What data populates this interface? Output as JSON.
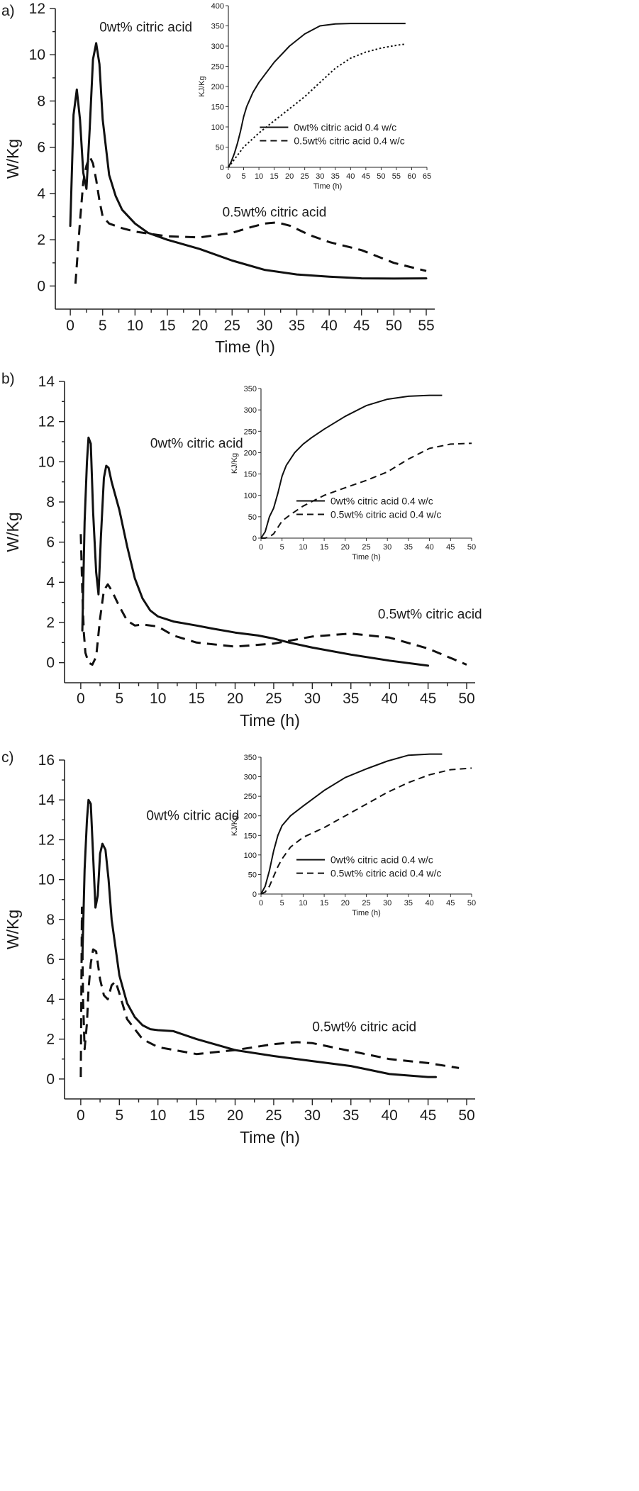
{
  "chart_data": [
    {
      "panel_label": "a)",
      "type": "line",
      "xlabel": "Time (h)",
      "ylabel": "W/Kg",
      "xlim": [
        -1,
        55
      ],
      "ylim": [
        -1,
        12
      ],
      "xticks": [
        0,
        5,
        10,
        15,
        20,
        25,
        30,
        35,
        40,
        45,
        50,
        55
      ],
      "yticks": [
        0,
        2,
        4,
        6,
        8,
        10,
        12
      ],
      "annotations": [
        {
          "text": "0wt% citric acid",
          "x": 4.5,
          "y": 11.0
        },
        {
          "text": "0.5wt% citric acid",
          "x": 23.5,
          "y": 3.0
        }
      ],
      "series": [
        {
          "style": "solid",
          "x": [
            0,
            0.5,
            1,
            1.5,
            2,
            2.5,
            3,
            3.5,
            4,
            4.5,
            5,
            6,
            7,
            8,
            10,
            12,
            15,
            20,
            25,
            30,
            35,
            40,
            45,
            50,
            55
          ],
          "y": [
            2.6,
            7.4,
            8.5,
            7.2,
            4.9,
            4.2,
            6.8,
            9.8,
            10.5,
            9.6,
            7.2,
            4.8,
            3.9,
            3.3,
            2.7,
            2.3,
            2.0,
            1.6,
            1.1,
            0.7,
            0.5,
            0.4,
            0.33,
            0.32,
            0.33
          ]
        },
        {
          "style": "dashed",
          "x": [
            0.8,
            1.5,
            2,
            2.5,
            3,
            3.5,
            4,
            4.5,
            5,
            6,
            8,
            10,
            15,
            20,
            25,
            28,
            30,
            32,
            34,
            37,
            40,
            45,
            50,
            55
          ],
          "y": [
            0.1,
            2.8,
            4.5,
            5.2,
            5.6,
            5.3,
            4.6,
            3.7,
            3.0,
            2.7,
            2.5,
            2.35,
            2.15,
            2.1,
            2.3,
            2.55,
            2.7,
            2.75,
            2.6,
            2.2,
            1.9,
            1.55,
            1.0,
            0.65
          ]
        }
      ],
      "inset": {
        "xlabel": "Time (h)",
        "ylabel": "KJ/Kg",
        "xlim": [
          0,
          65
        ],
        "ylim": [
          0,
          400
        ],
        "xticks": [
          0,
          5,
          10,
          15,
          20,
          25,
          30,
          35,
          40,
          45,
          50,
          55,
          60,
          65
        ],
        "yticks": [
          0,
          50,
          100,
          150,
          200,
          250,
          300,
          350,
          400
        ],
        "legend": [
          "0wt% citric acid 0.4 w/c",
          "0.5wt% citric acid 0.4 w/c"
        ],
        "series": [
          {
            "name": "0wt% citric acid 0.4 w/c",
            "style": "solid",
            "x": [
              0,
              1,
              2,
              3,
              4,
              5,
              6,
              8,
              10,
              15,
              20,
              25,
              30,
              35,
              40,
              45,
              50,
              55,
              58
            ],
            "y": [
              0,
              15,
              35,
              60,
              90,
              125,
              150,
              185,
              210,
              260,
              300,
              330,
              350,
              355,
              356,
              356,
              356,
              356,
              356
            ]
          },
          {
            "name": "0.5wt% citric acid 0.4 w/c",
            "style": "dotted",
            "x": [
              0,
              1,
              2,
              3,
              5,
              10,
              15,
              20,
              25,
              30,
              35,
              40,
              45,
              50,
              55,
              58
            ],
            "y": [
              0,
              10,
              20,
              30,
              50,
              85,
              115,
              145,
              175,
              210,
              245,
              270,
              285,
              295,
              302,
              305
            ]
          }
        ]
      }
    },
    {
      "panel_label": "b)",
      "type": "line",
      "xlabel": "Time (h)",
      "ylabel": "W/Kg",
      "xlim": [
        -1,
        50
      ],
      "ylim": [
        -1,
        14
      ],
      "xticks": [
        0,
        5,
        10,
        15,
        20,
        25,
        30,
        35,
        40,
        45,
        50
      ],
      "yticks": [
        0,
        2,
        4,
        6,
        8,
        10,
        12,
        14
      ],
      "annotations": [
        {
          "text": "0wt% citric acid",
          "x": 9.0,
          "y": 10.7
        },
        {
          "text": "0.5wt% citric acid",
          "x": 38.5,
          "y": 2.2
        }
      ],
      "series": [
        {
          "style": "solid",
          "x": [
            0.2,
            0.5,
            0.8,
            1,
            1.3,
            1.6,
            2,
            2.3,
            2.6,
            3,
            3.3,
            3.6,
            4,
            5,
            6,
            7,
            8,
            9,
            10,
            12,
            15,
            17,
            20,
            23,
            25,
            27,
            30,
            35,
            40,
            45
          ],
          "y": [
            1.6,
            7.0,
            10.0,
            11.2,
            10.9,
            7.5,
            4.5,
            3.4,
            6.2,
            9.2,
            9.8,
            9.7,
            9.0,
            7.6,
            5.8,
            4.2,
            3.2,
            2.6,
            2.3,
            2.05,
            1.85,
            1.7,
            1.5,
            1.35,
            1.2,
            1.0,
            0.75,
            0.4,
            0.1,
            -0.15
          ]
        },
        {
          "style": "dashed",
          "x": [
            0,
            0.2,
            0.4,
            0.6,
            1,
            1.5,
            2,
            2.5,
            3,
            3.5,
            4,
            5,
            6,
            7,
            8,
            10,
            12,
            15,
            20,
            25,
            30,
            35,
            40,
            45,
            50
          ],
          "y": [
            6.4,
            3.5,
            1.5,
            0.5,
            0.0,
            -0.1,
            0.3,
            2.2,
            3.6,
            3.9,
            3.6,
            2.8,
            2.1,
            1.85,
            1.9,
            1.8,
            1.35,
            1.0,
            0.8,
            0.95,
            1.3,
            1.45,
            1.25,
            0.7,
            -0.1
          ]
        }
      ],
      "inset": {
        "xlabel": "Time (h)",
        "ylabel": "KJ/Kg",
        "xlim": [
          0,
          50
        ],
        "ylim": [
          0,
          350
        ],
        "xticks": [
          0,
          5,
          10,
          15,
          20,
          25,
          30,
          35,
          40,
          45,
          50
        ],
        "yticks": [
          0,
          50,
          100,
          150,
          200,
          250,
          300,
          350
        ],
        "legend": [
          "0wt% citric acid 0.4 w/c",
          "0.5wt% citric acid 0.4 w/c"
        ],
        "series": [
          {
            "name": "0wt% citric acid 0.4 w/c",
            "style": "solid",
            "x": [
              0,
              1,
              2,
              3,
              4,
              5,
              6,
              8,
              10,
              12,
              15,
              20,
              25,
              30,
              35,
              40,
              43
            ],
            "y": [
              0,
              15,
              50,
              70,
              105,
              145,
              170,
              200,
              220,
              235,
              255,
              285,
              310,
              325,
              332,
              334,
              334
            ]
          },
          {
            "name": "0.5wt% citric acid 0.4 w/c",
            "style": "dashed",
            "x": [
              0,
              1,
              2,
              3,
              4,
              5,
              7,
              10,
              15,
              20,
              25,
              30,
              35,
              40,
              45,
              50
            ],
            "y": [
              0,
              0,
              3,
              10,
              25,
              40,
              55,
              75,
              100,
              118,
              135,
              155,
              185,
              210,
              220,
              222
            ]
          }
        ]
      }
    },
    {
      "panel_label": "c)",
      "type": "line",
      "xlabel": "Time (h)",
      "ylabel": "W/Kg",
      "xlim": [
        -1,
        50
      ],
      "ylim": [
        -1,
        16
      ],
      "xticks": [
        0,
        5,
        10,
        15,
        20,
        25,
        30,
        35,
        40,
        45,
        50
      ],
      "yticks": [
        0,
        2,
        4,
        6,
        8,
        10,
        12,
        14,
        16
      ],
      "annotations": [
        {
          "text": "0wt% citric acid",
          "x": 8.5,
          "y": 13.0
        },
        {
          "text": "0.5wt% citric acid",
          "x": 30.0,
          "y": 2.4
        }
      ],
      "series": [
        {
          "style": "solid",
          "x": [
            0.2,
            0.5,
            0.8,
            1,
            1.3,
            1.6,
            1.9,
            2.2,
            2.5,
            2.8,
            3.2,
            3.6,
            4,
            5,
            6,
            7,
            8,
            9,
            10,
            12,
            15,
            20,
            25,
            30,
            35,
            40,
            45,
            46
          ],
          "y": [
            6.0,
            10.5,
            13.0,
            14.0,
            13.8,
            11.2,
            8.6,
            9.2,
            11.3,
            11.8,
            11.5,
            10.0,
            8.0,
            5.2,
            3.8,
            3.1,
            2.7,
            2.5,
            2.45,
            2.4,
            2.0,
            1.45,
            1.15,
            0.9,
            0.65,
            0.25,
            0.1,
            0.1
          ]
        },
        {
          "style": "dashed",
          "x": [
            0,
            0.15,
            0.3,
            0.5,
            0.8,
            1,
            1.3,
            1.6,
            2,
            2.5,
            3,
            3.5,
            4,
            4.5,
            5,
            6,
            8,
            10,
            15,
            20,
            25,
            28,
            30,
            35,
            40,
            45,
            49
          ],
          "y": [
            0.1,
            8.6,
            4.0,
            1.5,
            2.8,
            4.5,
            5.8,
            6.5,
            6.4,
            5.0,
            4.2,
            4.0,
            4.7,
            4.9,
            4.3,
            3.0,
            2.0,
            1.6,
            1.25,
            1.45,
            1.75,
            1.85,
            1.8,
            1.4,
            1.0,
            0.8,
            0.55
          ]
        }
      ],
      "inset": {
        "xlabel": "Time (h)",
        "ylabel": "KJ/Kg",
        "xlim": [
          0,
          50
        ],
        "ylim": [
          0,
          350
        ],
        "xticks": [
          0,
          5,
          10,
          15,
          20,
          25,
          30,
          35,
          40,
          45,
          50
        ],
        "yticks": [
          0,
          50,
          100,
          150,
          200,
          250,
          300,
          350
        ],
        "legend": [
          "0wt% citric acid 0.4 w/c",
          "0.5wt% citric acid 0.4 w/c"
        ],
        "series": [
          {
            "name": "0wt% citric acid 0.4 w/c",
            "style": "solid",
            "x": [
              0,
              1,
              2,
              3,
              4,
              5,
              7,
              10,
              15,
              20,
              25,
              30,
              35,
              40,
              43
            ],
            "y": [
              0,
              20,
              60,
              110,
              150,
              175,
              200,
              225,
              265,
              298,
              320,
              340,
              355,
              358,
              358
            ]
          },
          {
            "name": "0.5wt% citric acid 0.4 w/c",
            "style": "dashed",
            "x": [
              0,
              1,
              2,
              3,
              4,
              5,
              7,
              10,
              15,
              20,
              25,
              30,
              35,
              40,
              45,
              50
            ],
            "y": [
              0,
              5,
              20,
              45,
              70,
              90,
              120,
              145,
              170,
              200,
              230,
              260,
              285,
              305,
              318,
              322
            ]
          }
        ]
      }
    }
  ]
}
